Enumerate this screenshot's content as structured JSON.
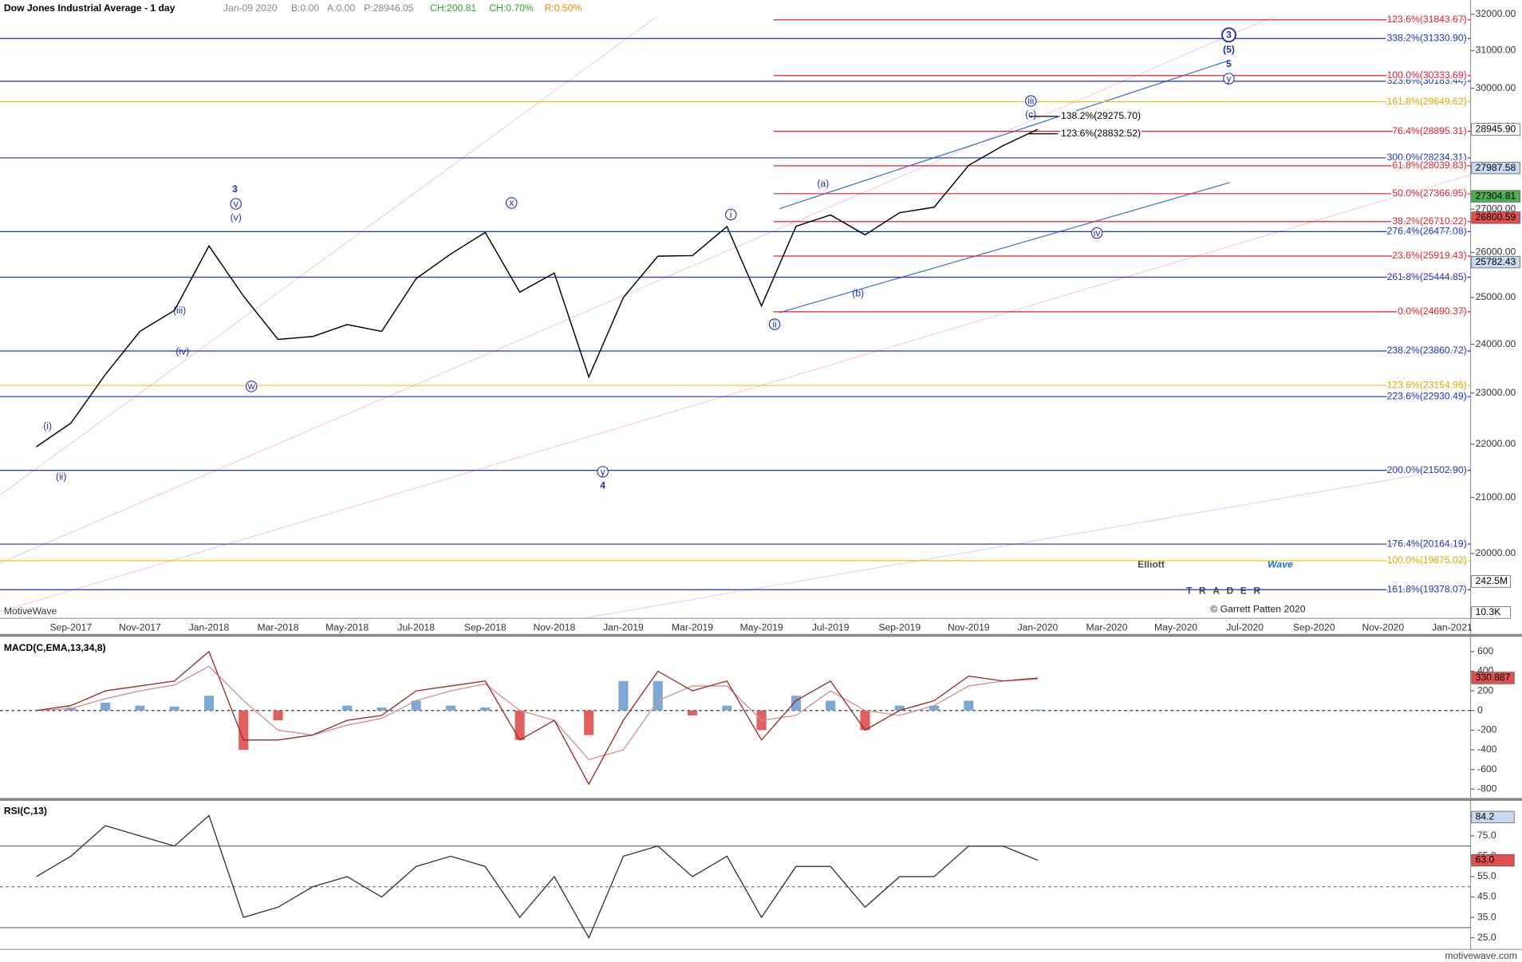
{
  "header": {
    "title": "Dow Jones Industrial Average - 1 day",
    "date": "Jan-09 2020",
    "bid": "B:0.00",
    "ask": "A:0.00",
    "price": "P:28946.05",
    "change": "CH:200.81",
    "change_pct": "CH:0.70%",
    "range": "R:0.50%"
  },
  "branding": {
    "platform": "MotiveWave",
    "logo_1": "Elliott",
    "logo_2": "Wave",
    "logo_3": "TRADER",
    "copyright": "© Garrett Patten 2020",
    "site": "motivewave.com"
  },
  "chart_data": [
    {
      "type": "line",
      "log_scale": true,
      "categories": [
        null,
        "Sep-2017",
        null,
        "Nov-2017",
        null,
        "Jan-2018",
        null,
        "Mar-2018",
        null,
        "May-2018",
        null,
        "Jul-2018",
        null,
        "Sep-2018",
        null,
        "Nov-2018",
        null,
        "Jan-2019",
        null,
        "Mar-2019",
        null,
        "May-2019",
        null,
        "Jul-2019",
        null,
        "Sep-2019",
        null,
        "Nov-2019",
        null,
        "Jan-2020",
        null,
        "Mar-2020",
        null,
        "May-2020",
        null,
        "Jul-2020",
        null,
        "Sep-2020",
        null,
        "Nov-2020",
        null,
        "Jan-2021"
      ],
      "series": [
        {
          "color": "#000000",
          "values": [
            21948,
            22405,
            23377,
            24272,
            24719,
            26149,
            25029,
            24103,
            24163,
            24416,
            24271,
            25415,
            25965,
            26458,
            25116,
            25538,
            23327,
            24999,
            25916,
            25929,
            26593,
            24815,
            26600,
            26864,
            26403,
            26917,
            27046,
            28051,
            28538,
            28946,
            null,
            null,
            null,
            null,
            null,
            null,
            null,
            null,
            null,
            null,
            null,
            null
          ]
        }
      ],
      "ylim": [
        18900,
        32400
      ],
      "yticks": [
        {
          "value": 20000,
          "label": "20000.00"
        },
        {
          "value": 21000,
          "label": "21000.00"
        },
        {
          "value": 22000,
          "label": "22000.00"
        },
        {
          "value": 23000,
          "label": "23000.00"
        },
        {
          "value": 24000,
          "label": "24000.00"
        },
        {
          "value": 25000,
          "label": "25000.00"
        },
        {
          "value": 26000,
          "label": "26000.00"
        },
        {
          "value": 27000,
          "label": "27000.00"
        },
        {
          "value": 28000,
          "label": "28000.00"
        },
        {
          "value": 29000,
          "label": "29000.00"
        },
        {
          "value": 30000,
          "label": "30000.00"
        },
        {
          "value": 31000,
          "label": "31000.00"
        },
        {
          "value": 32000,
          "label": "32000.00"
        }
      ],
      "levels": [
        {
          "value": 31330.9,
          "label": "338.2%(31330.90)",
          "color": "#1f2fbf"
        },
        {
          "value": 30183.44,
          "label": "323.6%(30183.44)",
          "color": "#1f2fbf"
        },
        {
          "value": 29649.62,
          "label": "161.8%(29649.62)",
          "color": "#f0c020"
        },
        {
          "value": 28234.31,
          "label": "300.0%(28234.31)",
          "color": "#1f2fbf"
        },
        {
          "value": 26477.08,
          "label": "276.4%(26477.08)",
          "color": "#1f2fbf"
        },
        {
          "value": 25444.85,
          "label": "261.8%(25444.85)",
          "color": "#1f2fbf"
        },
        {
          "value": 23860.72,
          "label": "238.2%(23860.72)",
          "color": "#1f2fbf"
        },
        {
          "value": 23154.96,
          "label": "123.6%(23154.96)",
          "color": "#f0c020"
        },
        {
          "value": 22930.49,
          "label": "223.6%(22930.49)",
          "color": "#1f2fbf"
        },
        {
          "value": 21502.9,
          "label": "200.0%(21502.90)",
          "color": "#1f2fbf"
        },
        {
          "value": 20164.19,
          "label": "176.4%(20164.19)",
          "color": "#1f2fbf"
        },
        {
          "value": 19875.02,
          "label": "100.0%(19875.02)",
          "color": "#f0c020"
        },
        {
          "value": 19378.07,
          "label": "161.8%(19378.07)",
          "color": "#1f2fbf"
        }
      ],
      "swing_levels": [
        {
          "value": 31843.67,
          "label": "123.6%(31843.67)",
          "color": "#e0202a"
        },
        {
          "value": 30333.69,
          "label": "100.0%(30333.69)",
          "color": "#e0202a"
        },
        {
          "value": 28895.31,
          "label": "76.4%(28895.31)",
          "color": "#e0202a"
        },
        {
          "value": 28039.83,
          "label": "61.8%(28039.83)",
          "color": "#e0202a"
        },
        {
          "value": 27366.95,
          "label": "50.0%(27366.95)",
          "color": "#e0202a"
        },
        {
          "value": 26710.22,
          "label": "38.2%(26710.22)",
          "color": "#e0202a"
        },
        {
          "value": 25919.43,
          "label": "23.6%(25919.43)",
          "color": "#e0202a"
        },
        {
          "value": 24690.37,
          "label": "0.0%(24690.37)",
          "color": "#e0202a"
        }
      ],
      "target_levels": [
        {
          "value": 29275.7,
          "label": "138.2%(29275.70)",
          "color": "#000000"
        },
        {
          "value": 28832.52,
          "label": "123.6%(28832.52)",
          "color": "#000000"
        }
      ],
      "price_tags": [
        {
          "value": 28945.9,
          "label": "28945.90",
          "color": "#ffffff"
        },
        {
          "value": 27987.58,
          "label": "27987.58",
          "color": "#c6d9f1"
        },
        {
          "value": 27304.81,
          "label": "27304.81",
          "color": "#4caf50"
        },
        {
          "value": 26800.59,
          "label": "26800.59",
          "color": "#e05050"
        },
        {
          "value": 25782.43,
          "label": "25782.43",
          "color": "#c6d9f1"
        }
      ],
      "volume_tags": [
        "242.5M",
        "10.3K"
      ],
      "annotations": [
        "3",
        "v",
        "(v)",
        "(iii)",
        "(iv)",
        "(i)",
        "(ii)",
        "w",
        "x",
        "y",
        "4",
        "i",
        "ii",
        "(a)",
        "(b)",
        "iii",
        "(c)",
        "iv",
        "3",
        "(5)",
        "5",
        "y"
      ]
    },
    {
      "type": "macd",
      "title": "MACD(C,EMA,13,34,8)",
      "series": [
        {
          "type": "bar",
          "color": "#7fa7d6",
          "negative_color": "#e06060",
          "values": [
            0,
            30,
            80,
            50,
            40,
            150,
            -400,
            -100,
            0,
            50,
            30,
            100,
            50,
            30,
            -300,
            0,
            -250,
            300,
            300,
            -50,
            50,
            -200,
            150,
            100,
            -200,
            50,
            50,
            100,
            0,
            10,
            null,
            null,
            null,
            null,
            null,
            null,
            null,
            null,
            null,
            null,
            null,
            null
          ]
        },
        {
          "type": "line",
          "color": "#d09090",
          "values": [
            0,
            20,
            120,
            200,
            260,
            450,
            100,
            -200,
            -250,
            -150,
            -80,
            100,
            200,
            270,
            0,
            -100,
            -500,
            -400,
            100,
            250,
            250,
            -100,
            -50,
            200,
            0,
            -50,
            50,
            250,
            300,
            320,
            null,
            null,
            null,
            null,
            null,
            null,
            null,
            null,
            null,
            null,
            null,
            null
          ]
        },
        {
          "type": "line",
          "color": "#9a2a2a",
          "values": [
            0,
            50,
            200,
            250,
            300,
            600,
            -300,
            -300,
            -250,
            -100,
            -50,
            200,
            250,
            300,
            -300,
            -100,
            -750,
            -100,
            400,
            200,
            300,
            -300,
            100,
            300,
            -200,
            0,
            100,
            350,
            300,
            330,
            null,
            null,
            null,
            null,
            null,
            null,
            null,
            null,
            null,
            null,
            null,
            null
          ]
        }
      ],
      "ylim": [
        -890,
        760
      ],
      "yticks": [
        600,
        400,
        200,
        0,
        -200,
        -400,
        -600,
        -800
      ],
      "zero_line": true,
      "tags": [
        {
          "value": 330.887,
          "label": "330.887",
          "color": "#e05050"
        }
      ]
    },
    {
      "type": "rsi",
      "title": "RSI(C,13)",
      "series": [
        {
          "type": "line",
          "color": "#333333",
          "values": [
            55,
            65,
            80,
            75,
            70,
            85,
            35,
            40,
            50,
            55,
            45,
            60,
            65,
            60,
            35,
            55,
            25,
            65,
            70,
            55,
            65,
            35,
            60,
            60,
            40,
            55,
            55,
            70,
            70,
            63,
            null,
            null,
            null,
            null,
            null,
            null,
            null,
            null,
            null,
            null,
            null,
            null
          ]
        }
      ],
      "ylim": [
        19.3,
        91.7
      ],
      "yticks": [
        {
          "value": 85,
          "label": "85.0"
        },
        {
          "value": 75,
          "label": "75.0"
        },
        {
          "value": 65,
          "label": "65.0"
        },
        {
          "value": 55,
          "label": "55.0"
        },
        {
          "value": 45,
          "label": "45.0"
        },
        {
          "value": 35,
          "label": "35.0"
        },
        {
          "value": 25,
          "label": "25.0"
        }
      ],
      "levels": [
        70,
        50,
        30
      ],
      "tags": [
        {
          "value": 84.2,
          "label": "84.2",
          "color": "#c6d9f1"
        },
        {
          "value": 63.0,
          "label": "63.0",
          "color": "#e05050"
        }
      ]
    }
  ]
}
